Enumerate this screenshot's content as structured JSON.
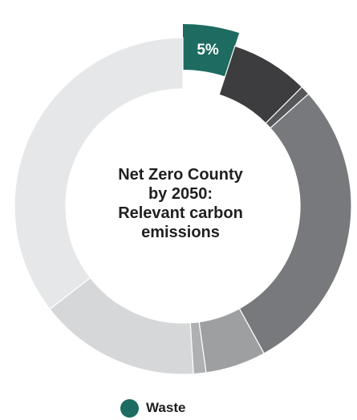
{
  "chart_data": {
    "type": "pie",
    "title": "Net Zero County by 2050: Relevant carbon emissions",
    "title_lines": [
      "Net Zero County",
      "by 2050:",
      "Relevant carbon",
      "emissions"
    ],
    "highlighted_category": "Waste",
    "highlighted_label": "5%",
    "slices": [
      {
        "name": "Waste",
        "value": 5,
        "label": "5%",
        "color": "#1d6b61",
        "exploded": true
      },
      {
        "value": 7.5,
        "color": "#3d3d3f"
      },
      {
        "value": 0.9,
        "color": "#55575a"
      },
      {
        "value": 28.6,
        "color": "#77797c"
      },
      {
        "value": 5.8,
        "color": "#9d9fa1"
      },
      {
        "value": 1.2,
        "color": "#aeb0b2"
      },
      {
        "value": 15.5,
        "color": "#d6d7d8"
      },
      {
        "value": 35.5,
        "color": "#e6e7e8"
      }
    ],
    "legend": [
      {
        "label": "Waste",
        "color": "#1d6b61"
      }
    ],
    "legend_position": "bottom"
  }
}
